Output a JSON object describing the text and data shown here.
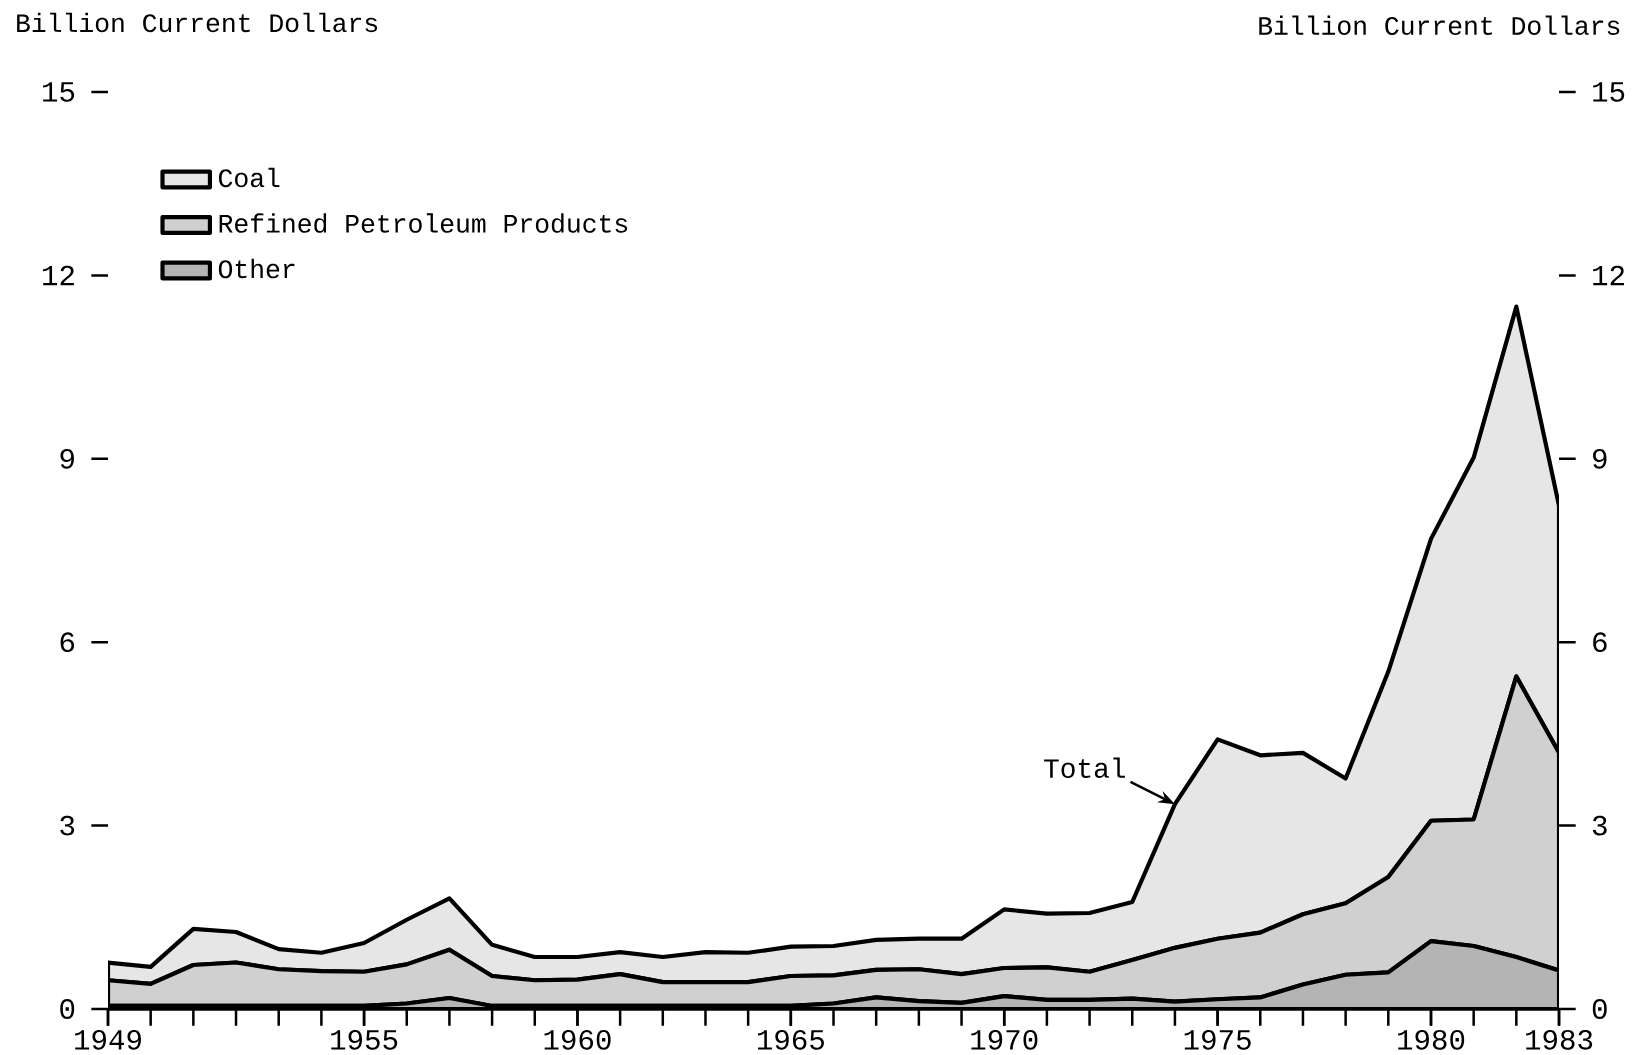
{
  "chart_data": {
    "type": "area",
    "stacked": true,
    "x": [
      1949,
      1950,
      1951,
      1952,
      1953,
      1954,
      1955,
      1956,
      1957,
      1958,
      1959,
      1960,
      1961,
      1962,
      1963,
      1964,
      1965,
      1966,
      1967,
      1968,
      1969,
      1970,
      1971,
      1972,
      1973,
      1974,
      1975,
      1976,
      1977,
      1978,
      1979,
      1980,
      1981,
      1982,
      1983
    ],
    "series": [
      {
        "name": "Other",
        "color": "#b4b4b4",
        "values": [
          0.05,
          0.05,
          0.05,
          0.05,
          0.05,
          0.05,
          0.05,
          0.09,
          0.18,
          0.05,
          0.05,
          0.05,
          0.05,
          0.05,
          0.05,
          0.05,
          0.05,
          0.09,
          0.19,
          0.13,
          0.1,
          0.21,
          0.15,
          0.15,
          0.17,
          0.12,
          0.16,
          0.19,
          0.4,
          0.56,
          0.6,
          1.11,
          1.03,
          0.85,
          0.63
        ]
      },
      {
        "name": "Refined Petroleum Products",
        "color": "#d0d0d0",
        "values": [
          0.42,
          0.36,
          0.67,
          0.71,
          0.6,
          0.57,
          0.56,
          0.64,
          0.79,
          0.49,
          0.42,
          0.43,
          0.52,
          0.39,
          0.39,
          0.39,
          0.49,
          0.46,
          0.45,
          0.52,
          0.47,
          0.46,
          0.53,
          0.46,
          0.63,
          0.88,
          0.99,
          1.06,
          1.15,
          1.17,
          1.56,
          1.97,
          2.07,
          4.59,
          3.56
        ]
      },
      {
        "name": "Coal",
        "color": "#e6e6e6",
        "values": [
          0.29,
          0.28,
          0.59,
          0.5,
          0.33,
          0.3,
          0.47,
          0.73,
          0.84,
          0.51,
          0.38,
          0.37,
          0.36,
          0.41,
          0.49,
          0.48,
          0.48,
          0.48,
          0.49,
          0.5,
          0.58,
          0.96,
          0.88,
          0.96,
          0.95,
          2.35,
          3.26,
          2.9,
          2.64,
          2.04,
          3.36,
          4.61,
          5.92,
          6.05,
          4.04
        ]
      }
    ],
    "ylabel": "Billion Current Dollars",
    "y2label": "Billion Current Dollars",
    "xlim": [
      1949,
      1983
    ],
    "xticks": [
      1949,
      1955,
      1960,
      1965,
      1970,
      1975,
      1980,
      1983
    ],
    "ylim": [
      0,
      15
    ],
    "yticks": [
      0,
      3,
      6,
      9,
      12,
      15
    ],
    "y2lim": [
      0,
      15
    ],
    "y2ticks": [
      0,
      3,
      6,
      9,
      12,
      15
    ],
    "legend": "top left",
    "annotations": [
      {
        "text": "Total",
        "x": 1974,
        "y": 3.35
      }
    ]
  }
}
